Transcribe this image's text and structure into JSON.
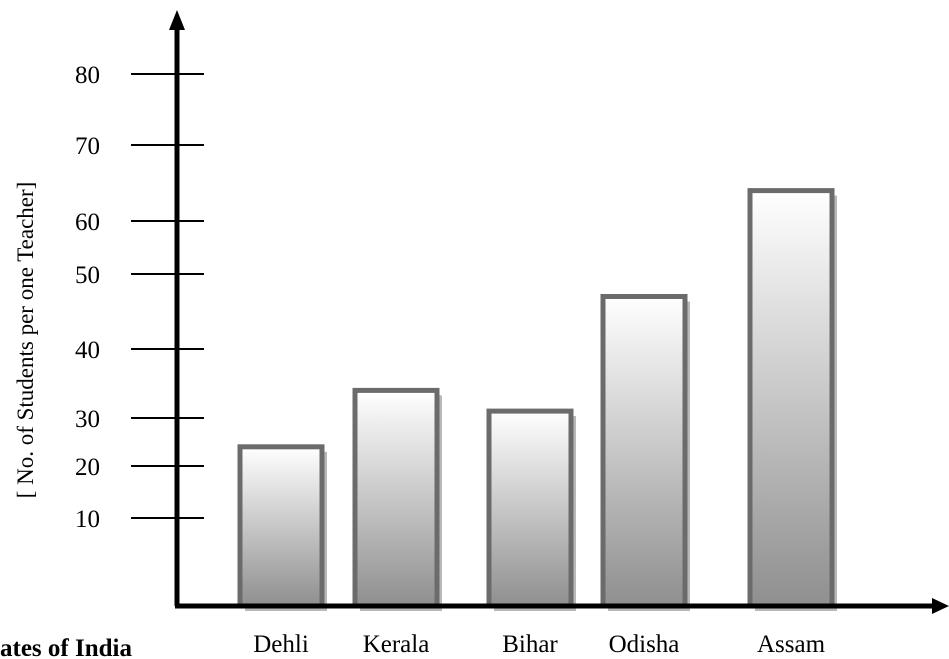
{
  "chart_data": {
    "type": "bar",
    "categories": [
      "Dehli",
      "Kerala",
      "Bihar",
      "Odisha",
      "Assam"
    ],
    "values": [
      24,
      34,
      31,
      47,
      64
    ],
    "xlabel": "ates of India",
    "ylabel": "[ No. of Students per one Teacher]",
    "yticks": [
      10,
      20,
      30,
      40,
      50,
      60,
      70,
      80
    ],
    "grid": false,
    "legend": "none",
    "colors": {
      "bar_top": "#ffffff",
      "bar_bottom": "#8f8f8f",
      "bar_border": "#6b6b6b",
      "bar_shadow": "#b8b8b8",
      "axis": "#000000"
    }
  }
}
